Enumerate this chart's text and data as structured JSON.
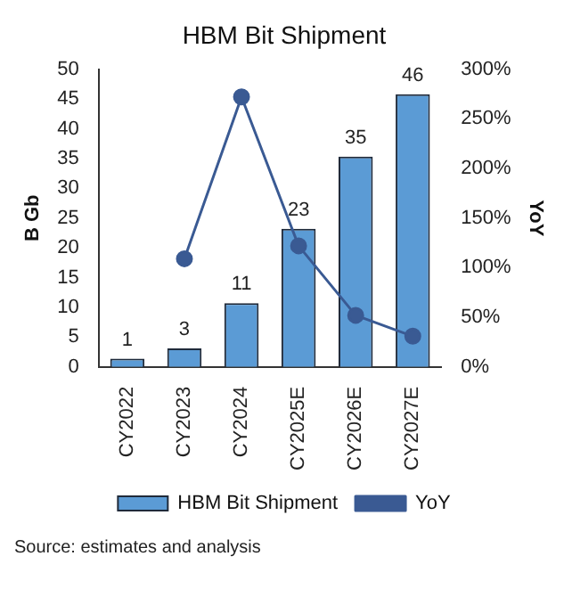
{
  "chart_data": {
    "type": "bar",
    "title": "HBM Bit Shipment",
    "ylabel": "B Gb",
    "y2label": "YoY",
    "categories": [
      "CY2022",
      "CY2023",
      "CY2024",
      "CY2025E",
      "CY2026E",
      "CY2027E"
    ],
    "series": [
      {
        "name": "HBM Bit Shipment",
        "color": "#5b9bd5",
        "values": [
          1.4,
          3.1,
          10.7,
          23.2,
          35.3,
          45.8
        ],
        "value_labels": [
          "1",
          "3",
          "11",
          "23",
          "35",
          "46"
        ]
      },
      {
        "name": "YoY",
        "type": "line",
        "axis": "y2",
        "color": "#3a5a93",
        "values": [
          null,
          109,
          272,
          122,
          52,
          31
        ]
      }
    ],
    "ylim": [
      0,
      50
    ],
    "yticks": [
      0,
      5,
      10,
      15,
      20,
      25,
      30,
      35,
      40,
      45,
      50
    ],
    "y2lim": [
      0,
      300
    ],
    "y2ticks": [
      {
        "value": 0,
        "label": "0%"
      },
      {
        "value": 50,
        "label": "50%"
      },
      {
        "value": 100,
        "label": "100%"
      },
      {
        "value": 150,
        "label": "150%"
      },
      {
        "value": 200,
        "label": "200%"
      },
      {
        "value": 250,
        "label": "250%"
      },
      {
        "value": 300,
        "label": "300%"
      }
    ],
    "grid": false,
    "legend": "bottom",
    "marker": "circle",
    "annotations": [
      "Source: estimates and analysis"
    ]
  }
}
